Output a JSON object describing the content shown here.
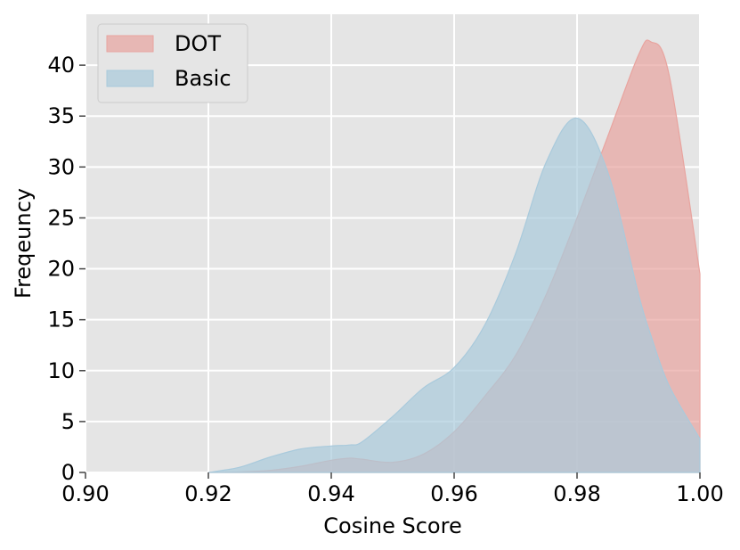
{
  "chart_data": {
    "type": "area",
    "xlabel": "Cosine Score",
    "ylabel": "Freqeuncy",
    "xlim": [
      0.9,
      1.0
    ],
    "ylim": [
      0,
      45
    ],
    "xticks": [
      "0.90",
      "0.92",
      "0.94",
      "0.96",
      "0.98",
      "1.00"
    ],
    "yticks": [
      "0",
      "5",
      "10",
      "15",
      "20",
      "25",
      "30",
      "35",
      "40"
    ],
    "grid": true,
    "legend_position": "top-left",
    "x": [
      0.92,
      0.925,
      0.93,
      0.935,
      0.94,
      0.943,
      0.945,
      0.95,
      0.955,
      0.96,
      0.965,
      0.97,
      0.975,
      0.98,
      0.985,
      0.99,
      0.992,
      0.995,
      1.0
    ],
    "series": [
      {
        "name": "DOT",
        "color": "#e8a49f",
        "values": [
          0.0,
          0.05,
          0.2,
          0.6,
          1.2,
          1.4,
          1.3,
          1.0,
          1.8,
          4.0,
          7.5,
          11.5,
          17.5,
          25.0,
          33.0,
          41.0,
          42.3,
          39.0,
          19.5
        ]
      },
      {
        "name": "Basic",
        "color": "#a9cadc",
        "values": [
          0.0,
          0.5,
          1.5,
          2.3,
          2.6,
          2.7,
          3.0,
          5.5,
          8.3,
          10.3,
          14.5,
          21.5,
          30.5,
          34.8,
          29.5,
          17.5,
          13.5,
          8.5,
          3.3
        ]
      }
    ]
  }
}
